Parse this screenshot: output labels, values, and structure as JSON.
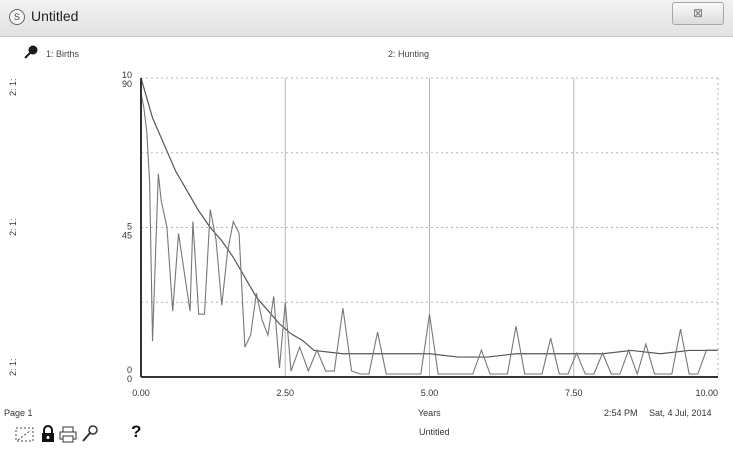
{
  "window": {
    "title": "Untitled",
    "close_glyph": "⊠"
  },
  "legend": {
    "series1_label": "1: Births",
    "series2_label": "2: Hunting"
  },
  "left_axis_labels": {
    "top": [
      "1:",
      "2:"
    ],
    "mid": [
      "1:",
      "2:"
    ],
    "bottom": [
      "1:",
      "2:"
    ]
  },
  "chart_data": {
    "type": "line",
    "xlabel": "Years",
    "xlim": [
      0,
      10
    ],
    "x_ticks": [
      "0.00",
      "2.50",
      "5.00",
      "7.50",
      "10.00"
    ],
    "y_ticks_series1": [
      "90",
      "45",
      "0"
    ],
    "y_ticks_series2": [
      "10",
      "5",
      "0"
    ],
    "ylim": [
      0,
      90
    ],
    "grid": true,
    "series": [
      {
        "name": "Births",
        "x": [
          0,
          0.1,
          0.2,
          0.4,
          0.6,
          0.8,
          1.0,
          1.2,
          1.4,
          1.6,
          1.8,
          2.0,
          2.2,
          2.4,
          2.6,
          2.8,
          3.0,
          3.5,
          4.0,
          4.5,
          5.0,
          5.5,
          6.0,
          6.5,
          7.0,
          7.5,
          8.0,
          8.5,
          9.0,
          9.5,
          10.0
        ],
        "values": [
          90,
          84,
          78,
          70,
          62,
          56,
          50,
          45,
          41,
          36,
          30,
          24,
          20,
          16,
          13,
          11,
          8,
          7,
          7,
          7,
          7,
          6,
          6,
          7,
          7,
          7,
          7,
          8,
          7,
          8,
          8
        ]
      },
      {
        "name": "Hunting",
        "x": [
          0,
          0.05,
          0.1,
          0.15,
          0.2,
          0.25,
          0.3,
          0.35,
          0.45,
          0.55,
          0.65,
          0.75,
          0.85,
          0.9,
          1.0,
          1.1,
          1.2,
          1.3,
          1.4,
          1.5,
          1.6,
          1.7,
          1.8,
          1.9,
          2.0,
          2.1,
          2.2,
          2.3,
          2.4,
          2.5,
          2.6,
          2.75,
          2.9,
          3.05,
          3.2,
          3.35,
          3.5,
          3.65,
          3.8,
          3.95,
          4.1,
          4.25,
          4.4,
          4.55,
          4.7,
          4.85,
          5.0,
          5.15,
          5.3,
          5.45,
          5.6,
          5.75,
          5.9,
          6.05,
          6.2,
          6.35,
          6.5,
          6.65,
          6.8,
          6.95,
          7.1,
          7.25,
          7.4,
          7.55,
          7.7,
          7.85,
          8.0,
          8.15,
          8.3,
          8.45,
          8.6,
          8.75,
          8.9,
          9.05,
          9.2,
          9.35,
          9.5,
          9.65,
          9.8,
          10.0
        ],
        "values": [
          9.5,
          9.0,
          8.2,
          6.5,
          1.2,
          4.0,
          6.8,
          5.9,
          5.0,
          2.2,
          4.8,
          3.5,
          2.2,
          5.2,
          2.1,
          2.1,
          5.6,
          4.6,
          2.4,
          4.2,
          5.2,
          4.8,
          1.0,
          1.4,
          2.8,
          1.9,
          1.4,
          2.7,
          0.3,
          2.5,
          0.2,
          1.0,
          0.2,
          0.9,
          0.2,
          0.2,
          2.3,
          0.2,
          0.1,
          0.1,
          1.5,
          0.1,
          0.1,
          0.1,
          0.1,
          0.1,
          2.1,
          0.1,
          0.1,
          0.1,
          0.1,
          0.1,
          0.9,
          0.1,
          0.1,
          0.1,
          1.7,
          0.1,
          0.1,
          0.1,
          1.3,
          0.1,
          0.1,
          0.8,
          0.1,
          0.1,
          0.8,
          0.1,
          0.1,
          0.9,
          0.1,
          1.1,
          0.1,
          0.1,
          0.1,
          1.6,
          0.1,
          0.1,
          0.9,
          0.9
        ]
      }
    ]
  },
  "status_bar": {
    "page": "Page 1",
    "time": "2:54 PM",
    "date": "Sat, 4 Jul, 2014",
    "footer_title": "Untitled",
    "help": "?"
  }
}
